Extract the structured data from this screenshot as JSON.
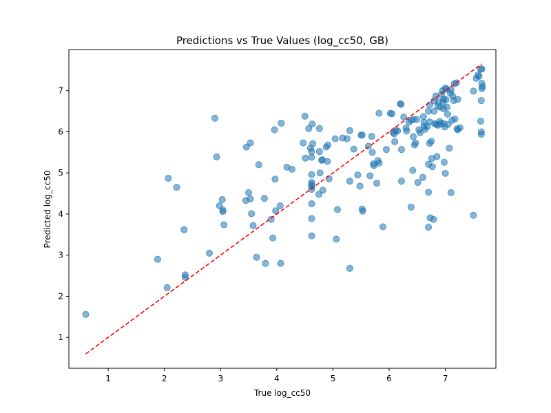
{
  "chart_data": {
    "type": "scatter",
    "title": "Predictions vs True Values (log_cc50, GB)",
    "xlabel": "True log_cc50",
    "ylabel": "Predicted log_cc50",
    "xlim": [
      0.3,
      7.9
    ],
    "ylim": [
      0.25,
      8.0
    ],
    "xticks": [
      1,
      2,
      3,
      4,
      5,
      6,
      7
    ],
    "yticks": [
      1,
      2,
      3,
      4,
      5,
      6,
      7
    ],
    "grid": false,
    "legend": "none",
    "point_color": "#1f77b4",
    "point_opacity": 0.55,
    "reference_line": {
      "x": [
        0.6,
        7.65
      ],
      "y": [
        0.6,
        7.65
      ],
      "color": "#ff0000",
      "style": "dashed"
    },
    "points": [
      [
        0.6,
        1.56
      ],
      [
        1.88,
        2.9
      ],
      [
        2.05,
        2.21
      ],
      [
        2.07,
        4.87
      ],
      [
        2.22,
        4.65
      ],
      [
        2.35,
        3.62
      ],
      [
        2.37,
        2.52
      ],
      [
        2.37,
        2.46
      ],
      [
        2.8,
        3.05
      ],
      [
        2.9,
        6.33
      ],
      [
        2.93,
        5.39
      ],
      [
        2.98,
        4.2
      ],
      [
        3.03,
        4.35
      ],
      [
        3.04,
        4.1
      ],
      [
        3.04,
        4.06
      ],
      [
        3.06,
        3.74
      ],
      [
        3.45,
        4.33
      ],
      [
        3.46,
        5.63
      ],
      [
        3.5,
        4.52
      ],
      [
        3.53,
        5.73
      ],
      [
        3.53,
        4.37
      ],
      [
        3.55,
        4.01
      ],
      [
        3.58,
        3.72
      ],
      [
        3.64,
        2.95
      ],
      [
        3.68,
        5.2
      ],
      [
        3.78,
        4.38
      ],
      [
        3.8,
        2.8
      ],
      [
        3.9,
        3.87
      ],
      [
        3.93,
        3.42
      ],
      [
        3.96,
        6.05
      ],
      [
        3.97,
        4.85
      ],
      [
        3.98,
        4.08
      ],
      [
        4.06,
        4.2
      ],
      [
        4.07,
        2.8
      ],
      [
        4.08,
        6.21
      ],
      [
        4.18,
        5.14
      ],
      [
        4.27,
        5.09
      ],
      [
        4.47,
        5.73
      ],
      [
        4.5,
        6.38
      ],
      [
        4.51,
        5.36
      ],
      [
        4.57,
        6.08
      ],
      [
        4.6,
        5.6
      ],
      [
        4.62,
        5.38
      ],
      [
        4.62,
        5.52
      ],
      [
        4.62,
        4.96
      ],
      [
        4.62,
        4.77
      ],
      [
        4.62,
        4.72
      ],
      [
        4.62,
        4.67
      ],
      [
        4.62,
        4.6
      ],
      [
        4.62,
        4.25
      ],
      [
        4.62,
        3.89
      ],
      [
        4.62,
        3.47
      ],
      [
        4.63,
        6.19
      ],
      [
        4.64,
        5.71
      ],
      [
        4.75,
        4.48
      ],
      [
        4.76,
        6.08
      ],
      [
        4.76,
        5.52
      ],
      [
        4.77,
        5.0
      ],
      [
        4.8,
        5.31
      ],
      [
        4.81,
        5.32
      ],
      [
        4.82,
        4.58
      ],
      [
        4.88,
        5.63
      ],
      [
        4.9,
        5.28
      ],
      [
        4.91,
        5.68
      ],
      [
        4.93,
        4.86
      ],
      [
        5.04,
        5.83
      ],
      [
        5.06,
        3.39
      ],
      [
        5.08,
        4.11
      ],
      [
        5.17,
        5.85
      ],
      [
        5.25,
        5.83
      ],
      [
        5.3,
        6.03
      ],
      [
        5.3,
        4.8
      ],
      [
        5.3,
        2.68
      ],
      [
        5.37,
        5.58
      ],
      [
        5.44,
        4.95
      ],
      [
        5.48,
        4.68
      ],
      [
        5.5,
        5.92
      ],
      [
        5.52,
        5.92
      ],
      [
        5.52,
        4.12
      ],
      [
        5.53,
        4.07
      ],
      [
        5.63,
        5.65
      ],
      [
        5.66,
        4.93
      ],
      [
        5.69,
        5.89
      ],
      [
        5.7,
        5.5
      ],
      [
        5.72,
        5.22
      ],
      [
        5.73,
        5.18
      ],
      [
        5.78,
        4.75
      ],
      [
        5.8,
        5.3
      ],
      [
        5.82,
        6.45
      ],
      [
        5.82,
        5.24
      ],
      [
        5.89,
        3.69
      ],
      [
        5.95,
        5.57
      ],
      [
        6.02,
        6.45
      ],
      [
        6.05,
        6.44
      ],
      [
        6.07,
        5.99
      ],
      [
        6.09,
        5.95
      ],
      [
        6.1,
        5.76
      ],
      [
        6.12,
        6.04
      ],
      [
        6.15,
        6.02
      ],
      [
        6.2,
        6.68
      ],
      [
        6.21,
        6.67
      ],
      [
        6.22,
        5.57
      ],
      [
        6.22,
        4.8
      ],
      [
        6.26,
        6.36
      ],
      [
        6.3,
        6.09
      ],
      [
        6.31,
        6.02
      ],
      [
        6.35,
        6.23
      ],
      [
        6.39,
        6.28
      ],
      [
        6.39,
        4.17
      ],
      [
        6.42,
        5.06
      ],
      [
        6.43,
        6.3
      ],
      [
        6.43,
        5.88
      ],
      [
        6.45,
        5.68
      ],
      [
        6.47,
        5.73
      ],
      [
        6.49,
        6.3
      ],
      [
        6.51,
        4.77
      ],
      [
        6.53,
        6.05
      ],
      [
        6.55,
        5.98
      ],
      [
        6.6,
        4.89
      ],
      [
        6.61,
        6.37
      ],
      [
        6.62,
        6.23
      ],
      [
        6.62,
        6.13
      ],
      [
        6.64,
        6.06
      ],
      [
        6.68,
        6.13
      ],
      [
        6.7,
        6.5
      ],
      [
        6.7,
        5.21
      ],
      [
        6.7,
        4.53
      ],
      [
        6.7,
        3.68
      ],
      [
        6.72,
        6.65
      ],
      [
        6.72,
        6.24
      ],
      [
        6.72,
        5.72
      ],
      [
        6.73,
        3.91
      ],
      [
        6.75,
        5.77
      ],
      [
        6.76,
        5.35
      ],
      [
        6.77,
        5.15
      ],
      [
        6.79,
        3.87
      ],
      [
        6.8,
        6.75
      ],
      [
        6.8,
        6.5
      ],
      [
        6.81,
        6.2
      ],
      [
        6.83,
        6.87
      ],
      [
        6.84,
        6.18
      ],
      [
        6.85,
        5.4
      ],
      [
        6.87,
        6.62
      ],
      [
        6.87,
        6.16
      ],
      [
        6.88,
        6.73
      ],
      [
        6.9,
        6.25
      ],
      [
        6.91,
        6.6
      ],
      [
        6.92,
        6.2
      ],
      [
        6.93,
        6.91
      ],
      [
        6.95,
        7.0
      ],
      [
        6.96,
        6.73
      ],
      [
        6.97,
        6.8
      ],
      [
        6.97,
        6.56
      ],
      [
        6.97,
        6.2
      ],
      [
        6.98,
        5.26
      ],
      [
        6.99,
        6.12
      ],
      [
        7.0,
        7.06
      ],
      [
        7.0,
        4.99
      ],
      [
        7.01,
        6.78
      ],
      [
        7.02,
        7.04
      ],
      [
        7.03,
        6.6
      ],
      [
        7.04,
        6.43
      ],
      [
        7.05,
        6.18
      ],
      [
        7.07,
        5.6
      ],
      [
        7.09,
        6.94
      ],
      [
        7.1,
        7.02
      ],
      [
        7.1,
        4.52
      ],
      [
        7.12,
        6.28
      ],
      [
        7.13,
        6.87
      ],
      [
        7.15,
        6.76
      ],
      [
        7.16,
        7.17
      ],
      [
        7.17,
        6.31
      ],
      [
        7.2,
        7.19
      ],
      [
        7.21,
        6.07
      ],
      [
        7.22,
        6.79
      ],
      [
        7.22,
        6.05
      ],
      [
        7.26,
        6.1
      ],
      [
        7.5,
        6.99
      ],
      [
        7.5,
        3.97
      ],
      [
        7.55,
        7.3
      ],
      [
        7.58,
        7.38
      ],
      [
        7.6,
        7.35
      ],
      [
        7.63,
        7.52
      ],
      [
        7.65,
        7.53
      ],
      [
        7.65,
        7.18
      ],
      [
        7.65,
        7.05
      ],
      [
        7.64,
        6.76
      ],
      [
        7.63,
        6.26
      ],
      [
        7.64,
        6.0
      ],
      [
        7.64,
        5.94
      ],
      [
        7.66,
        7.1
      ]
    ]
  }
}
